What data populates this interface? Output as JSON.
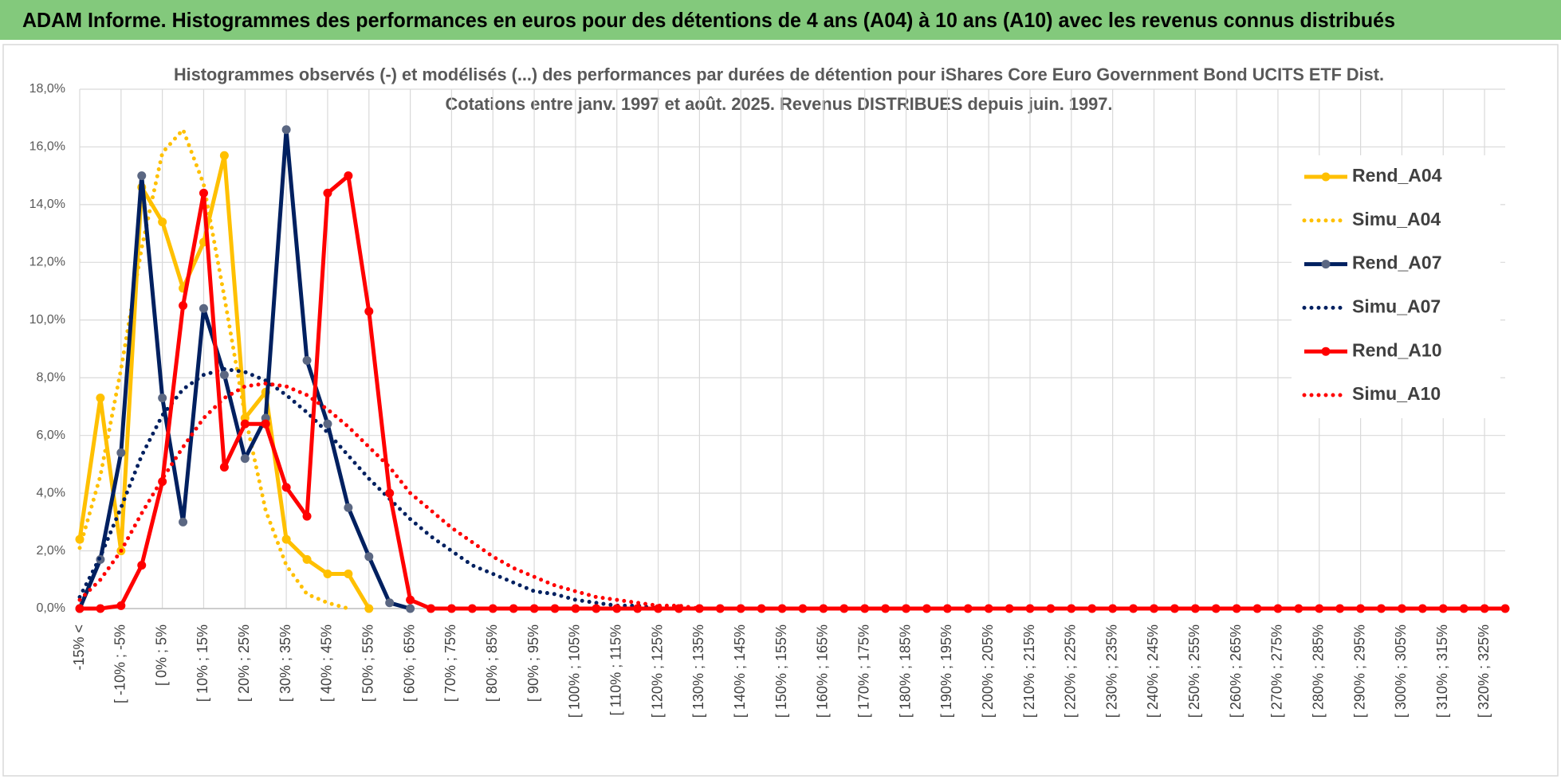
{
  "chart_data": {
    "type": "line",
    "banner": "ADAM Informe. Histogrammes des performances en euros pour des détentions de 4 ans (A04) à 10 ans (A10) avec les revenus connus distribués",
    "title": "Histogrammes observés (-) et modélisés (...) des performances par durées de détention pour iShares Core Euro Government Bond UCITS ETF Dist.",
    "subtitle": "Cotations entre janv. 1997 et août. 2025. Revenus DISTRIBUES depuis juin. 1997.",
    "categories": [
      "-15% <",
      null,
      "[ -10% ; -5%",
      null,
      "[ 0% ; 5%",
      null,
      "[ 10% ; 15%",
      null,
      "[ 20% ; 25%",
      null,
      "[ 30% ; 35%",
      null,
      "[ 40% ; 45%",
      null,
      "[ 50% ; 55%",
      null,
      "[ 60% ; 65%",
      null,
      "[ 70% ; 75%",
      null,
      "[ 80% ; 85%",
      null,
      "[ 90% ; 95%",
      null,
      "[ 100% ; 105%",
      null,
      "[ 110% ; 115%",
      null,
      "[ 120% ; 125%",
      null,
      "[ 130% ; 135%",
      null,
      "[ 140% ; 145%",
      null,
      "[ 150% ; 155%",
      null,
      "[ 160% ; 165%",
      null,
      "[ 170% ; 175%",
      null,
      "[ 180% ; 185%",
      null,
      "[ 190% ; 195%",
      null,
      "[ 200% ; 205%",
      null,
      "[ 210% ; 215%",
      null,
      "[ 220% ; 225%",
      null,
      "[ 230% ; 235%",
      null,
      "[ 240% ; 245%",
      null,
      "[ 250% ; 255%",
      null,
      "[ 260% ; 265%",
      null,
      "[ 270% ; 275%",
      null,
      "[ 280% ; 285%",
      null,
      "[ 290% ; 295%",
      null,
      "[ 300% ; 305%",
      null,
      "[ 310% ; 315%",
      null,
      "[ 320% ; 325%",
      null
    ],
    "ylim": [
      0,
      18
    ],
    "yticks": [
      {
        "value": 0,
        "label": "0,0%"
      },
      {
        "value": 2,
        "label": "2,0%"
      },
      {
        "value": 4,
        "label": "4,0%"
      },
      {
        "value": 6,
        "label": "6,0%"
      },
      {
        "value": 8,
        "label": "8,0%"
      },
      {
        "value": 10,
        "label": "10,0%"
      },
      {
        "value": 12,
        "label": "12,0%"
      },
      {
        "value": 14,
        "label": "14,0%"
      },
      {
        "value": 16,
        "label": "16,0%"
      },
      {
        "value": 18,
        "label": "18,0%"
      }
    ],
    "grid": true,
    "legend": "upper right",
    "series": [
      {
        "name": "Rend_A04",
        "color": "#FFC000",
        "dash": "solid",
        "marker_color": "#FFC000",
        "values": [
          2.4,
          7.3,
          2.0,
          14.6,
          13.4,
          11.1,
          12.7,
          15.7,
          6.6,
          7.5,
          2.4,
          1.7,
          1.2,
          1.2,
          0.0,
          null,
          null,
          null,
          null,
          null,
          null,
          null,
          null,
          null,
          null,
          null,
          null,
          null,
          null,
          null,
          null,
          null,
          null,
          null,
          null,
          null,
          null,
          null,
          null,
          null,
          null,
          null,
          null,
          null,
          null,
          null,
          null,
          null,
          null,
          null,
          null,
          null,
          null,
          null,
          null,
          null,
          null,
          null,
          null,
          null,
          null,
          null,
          null,
          null,
          null,
          null,
          null,
          null,
          null,
          null
        ]
      },
      {
        "name": "Simu_A04",
        "color": "#FFC000",
        "dash": "dotted",
        "values": [
          2.1,
          4.6,
          8.3,
          12.5,
          15.8,
          16.6,
          14.7,
          10.8,
          6.7,
          3.4,
          1.5,
          0.5,
          0.2,
          0.0,
          null,
          null,
          null,
          null,
          null,
          null,
          null,
          null,
          null,
          null,
          null,
          null,
          null,
          null,
          null,
          null,
          null,
          null,
          null,
          null,
          null,
          null,
          null,
          null,
          null,
          null,
          null,
          null,
          null,
          null,
          null,
          null,
          null,
          null,
          null,
          null,
          null,
          null,
          null,
          null,
          null,
          null,
          null,
          null,
          null,
          null,
          null,
          null,
          null,
          null,
          null,
          null,
          null,
          null,
          null,
          null
        ]
      },
      {
        "name": "Rend_A07",
        "color": "#002060",
        "dash": "solid",
        "marker_color": "#5B6782",
        "values": [
          0,
          1.7,
          5.4,
          15.0,
          7.3,
          3.0,
          10.4,
          8.1,
          5.2,
          6.6,
          16.6,
          8.6,
          6.4,
          3.5,
          1.8,
          0.2,
          0.0,
          null,
          null,
          null,
          null,
          null,
          null,
          null,
          null,
          null,
          null,
          null,
          null,
          null,
          null,
          null,
          null,
          null,
          null,
          null,
          null,
          null,
          null,
          null,
          null,
          null,
          null,
          null,
          null,
          null,
          null,
          null,
          null,
          null,
          null,
          null,
          null,
          null,
          null,
          null,
          null,
          null,
          null,
          null,
          null,
          null,
          null,
          null,
          null,
          null,
          null,
          null,
          null,
          null
        ]
      },
      {
        "name": "Simu_A07",
        "color": "#002060",
        "dash": "dotted",
        "values": [
          0.4,
          1.8,
          3.5,
          5.3,
          6.7,
          7.6,
          8.1,
          8.3,
          8.2,
          7.9,
          7.4,
          6.8,
          6.1,
          5.3,
          4.5,
          3.8,
          3.1,
          2.5,
          2.0,
          1.5,
          1.2,
          0.9,
          0.6,
          0.5,
          0.3,
          0.2,
          0.1,
          0.1,
          0.0,
          null,
          null,
          null,
          null,
          null,
          null,
          null,
          null,
          null,
          null,
          null,
          null,
          null,
          null,
          null,
          null,
          null,
          null,
          null,
          null,
          null,
          null,
          null,
          null,
          null,
          null,
          null,
          null,
          null,
          null,
          null,
          null,
          null,
          null,
          null,
          null,
          null,
          null,
          null,
          null,
          null
        ]
      },
      {
        "name": "Rend_A10",
        "color": "#FF0000",
        "dash": "solid",
        "marker_color": "#FF0000",
        "values": [
          0,
          0,
          0.1,
          1.5,
          4.4,
          10.5,
          14.4,
          4.9,
          6.4,
          6.4,
          4.2,
          3.2,
          14.4,
          15.0,
          10.3,
          4.0,
          0.3,
          0,
          0,
          0,
          0,
          0,
          0,
          0,
          0,
          0,
          0,
          0,
          0,
          0,
          0,
          0,
          0,
          0,
          0,
          0,
          0,
          0,
          0,
          0,
          0,
          0,
          0,
          0,
          0,
          0,
          0,
          0,
          0,
          0,
          0,
          0,
          0,
          0,
          0,
          0,
          0,
          0,
          0,
          0,
          0,
          0,
          0,
          0,
          0,
          0,
          0,
          0,
          0,
          0
        ]
      },
      {
        "name": "Simu_A10",
        "color": "#FF0000",
        "dash": "dotted",
        "values": [
          0.3,
          1.0,
          2.0,
          3.3,
          4.5,
          5.6,
          6.6,
          7.3,
          7.7,
          7.8,
          7.7,
          7.4,
          6.9,
          6.3,
          5.6,
          4.9,
          4.0,
          3.4,
          2.8,
          2.3,
          1.8,
          1.4,
          1.1,
          0.8,
          0.6,
          0.4,
          0.3,
          0.2,
          0.1,
          0.1,
          0.0,
          null,
          null,
          null,
          null,
          null,
          null,
          null,
          null,
          null,
          null,
          null,
          null,
          null,
          null,
          null,
          null,
          null,
          null,
          null,
          null,
          null,
          null,
          null,
          null,
          null,
          null,
          null,
          null,
          null,
          null,
          null,
          null,
          null,
          null,
          null,
          null,
          null,
          null,
          null
        ]
      }
    ]
  }
}
